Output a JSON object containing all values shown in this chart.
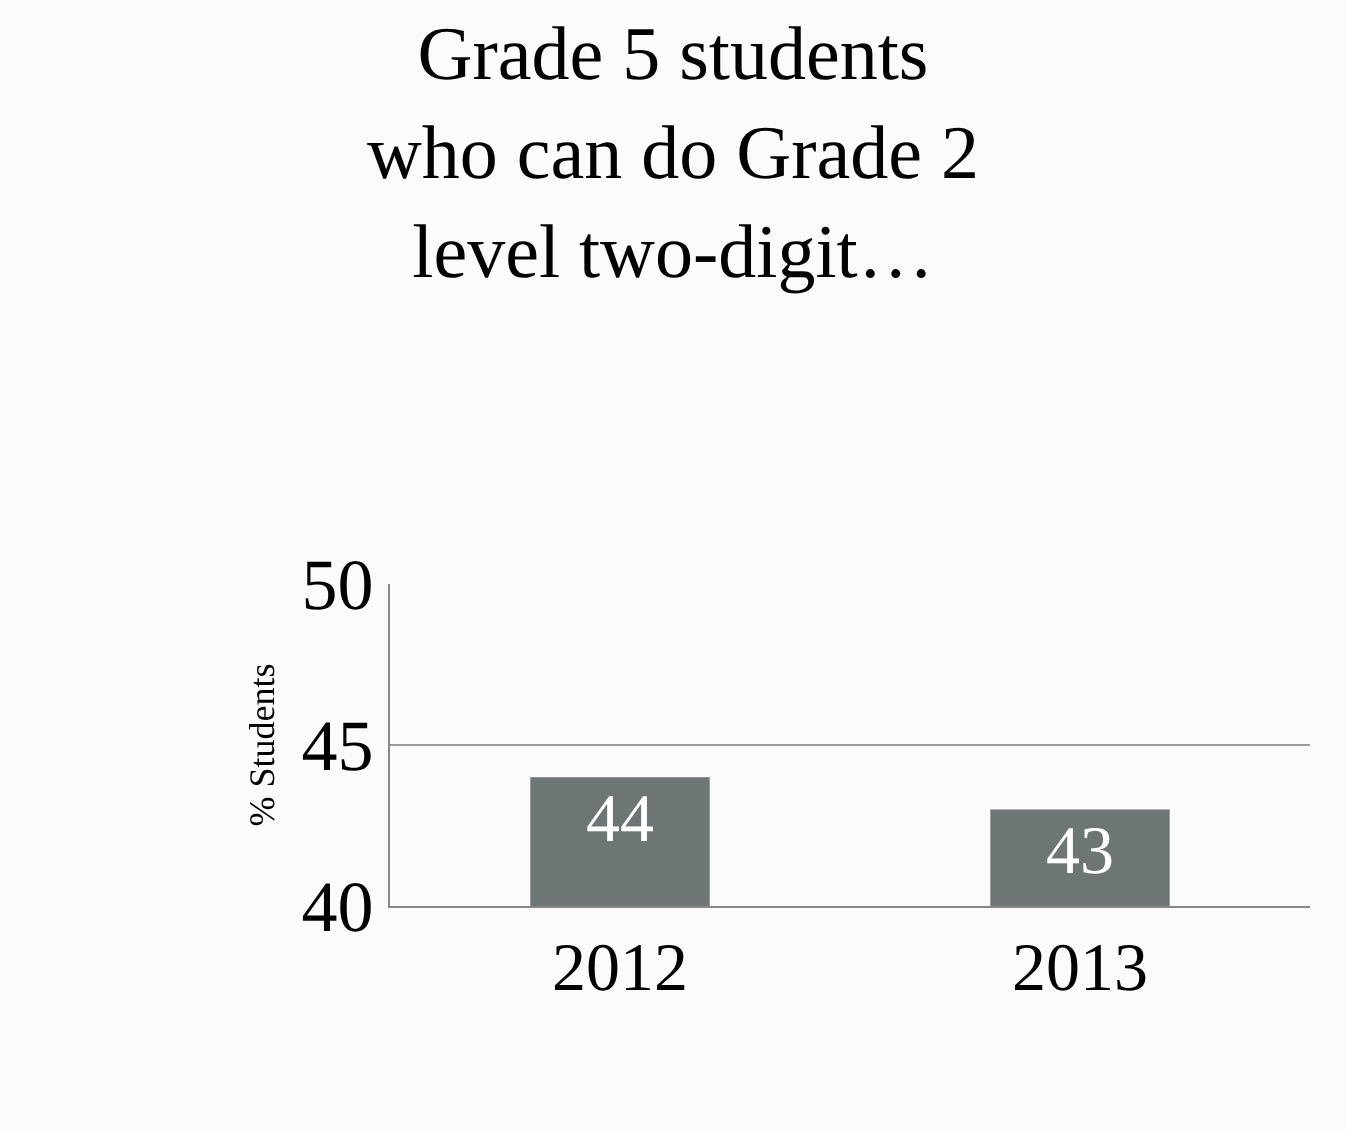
{
  "chart_data": {
    "type": "bar",
    "title": "Grade 5 students\nwho can do Grade 2\nlevel two-digit…",
    "ylabel": "% Students",
    "categories": [
      "2012",
      "2013"
    ],
    "values": [
      44,
      43
    ],
    "color": "#6e7675",
    "ylim": [
      40,
      50
    ],
    "yticks": [
      40,
      45,
      50
    ],
    "grid": "y",
    "data_labels": true
  }
}
